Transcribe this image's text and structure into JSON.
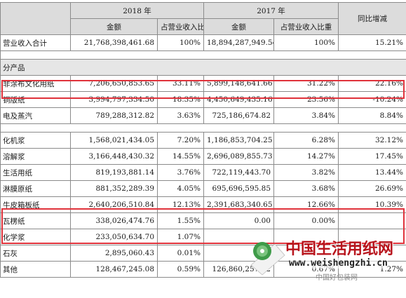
{
  "header": {
    "year_2018": "2018 年",
    "year_2017": "2017 年",
    "yoy": "同比增减",
    "amount": "金额",
    "share": "占营业收入比重"
  },
  "total_row": {
    "label": "营业收入合计",
    "a2018": "21,768,398,461.68",
    "p2018": "100%",
    "a2017": "18,894,287,949.54",
    "p2017": "100%",
    "yoy": "15.21%"
  },
  "section_label": "分产品",
  "rows": [
    {
      "label": "非涂布文化用纸",
      "a2018": "7,206,650,853.65",
      "p2018": "33.11%",
      "a2017": "5,899,148,641.66",
      "p2017": "31.22%",
      "yoy": "22.16%"
    },
    {
      "label": "铜版纸",
      "a2018": "3,994,797,334.50",
      "p2018": "18.35%",
      "a2017": "4,450,649,435.16",
      "p2017": "23.56%",
      "yoy": "-10.24%"
    },
    {
      "label": "电及蒸汽",
      "a2018": "789,288,312.82",
      "p2018": "3.63%",
      "a2017": "725,186,674.82",
      "p2017": "3.84%",
      "yoy": "8.84%"
    },
    {
      "label": "化机浆",
      "a2018": "1,568,021,434.05",
      "p2018": "7.20%",
      "a2017": "1,186,853,704.25",
      "p2017": "6.28%",
      "yoy": "32.12%"
    },
    {
      "label": "溶解浆",
      "a2018": "3,166,448,430.32",
      "p2018": "14.55%",
      "a2017": "2,696,089,855.73",
      "p2017": "14.27%",
      "yoy": "17.45%"
    },
    {
      "label": "生活用纸",
      "a2018": "819,193,881.14",
      "p2018": "3.76%",
      "a2017": "722,119,443.70",
      "p2017": "3.82%",
      "yoy": "13.44%"
    },
    {
      "label": "淋膜原纸",
      "a2018": "881,352,289.39",
      "p2018": "4.05%",
      "a2017": "695,696,595.85",
      "p2017": "3.68%",
      "yoy": "26.69%"
    },
    {
      "label": "牛皮箱板纸",
      "a2018": "2,640,206,510.84",
      "p2018": "12.13%",
      "a2017": "2,391,683,340.65",
      "p2017": "12.66%",
      "yoy": "10.39%"
    },
    {
      "label": "瓦楞纸",
      "a2018": "338,026,474.76",
      "p2018": "1.55%",
      "a2017": "0.00",
      "p2017": "0.00%",
      "yoy": ""
    },
    {
      "label": "化学浆",
      "a2018": "233,050,634.70",
      "p2018": "1.07%",
      "a2017": "",
      "p2017": "",
      "yoy": ""
    },
    {
      "label": "石灰",
      "a2018": "2,895,060.43",
      "p2018": "0.01%",
      "a2017": "0.00",
      "p2017": "",
      "yoy": ""
    },
    {
      "label": "其他",
      "a2018": "128,467,245.08",
      "p2018": "0.59%",
      "a2017": "126,860,257.72",
      "p2017": "0.67%",
      "yoy": "1.27%"
    }
  ],
  "watermark": {
    "title": "中国生活用纸网",
    "url": "www.weishengzhi.cn",
    "sub": "中国好包装网",
    "colors": {
      "title": "#b8141c",
      "logo_green": "#2e8b3a"
    }
  },
  "highlight_color": "#e0323b"
}
